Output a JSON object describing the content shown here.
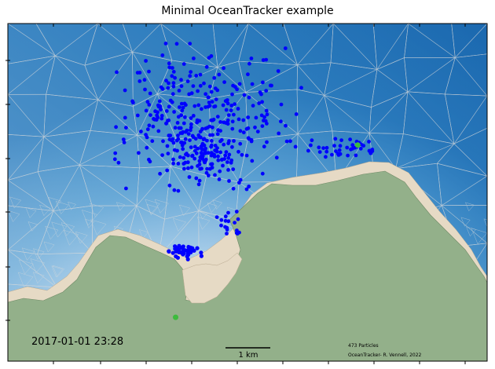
{
  "title": "Minimal OceanTracker example",
  "chart_data": {
    "type": "scatter",
    "title": "Minimal OceanTracker example",
    "timestamp": "2017-01-01 23:28",
    "particle_count_label": "473 Particles",
    "credit": "OceanTracker- R. Vennell, 2022",
    "scale_bar_label": "1 km",
    "colors": {
      "deep_water": "#1f6fb5",
      "shallow_water": "#dce9f5",
      "land": "#93b08a",
      "dry_zone": "#e6dac5",
      "particles": "#0000ff",
      "release_points": "#3dbb3d",
      "mesh": "#d8d8d8"
    },
    "release_points": [
      {
        "x": 0.73,
        "y": 0.64
      },
      {
        "x": 0.35,
        "y": 0.13
      }
    ]
  }
}
